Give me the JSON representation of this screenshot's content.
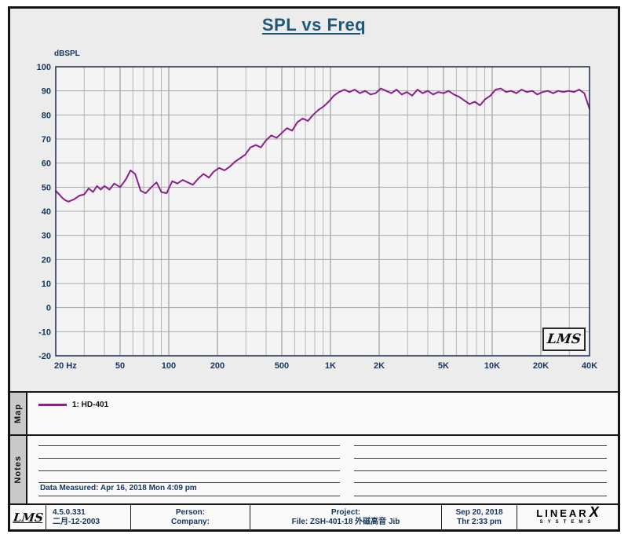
{
  "title": "SPL vs Freq",
  "chart": {
    "ylabel": "dBSPL",
    "watermark": "LMS",
    "x_ticks": [
      {
        "v": 20,
        "label": "20 Hz"
      },
      {
        "v": 50,
        "label": "50"
      },
      {
        "v": 100,
        "label": "100"
      },
      {
        "v": 200,
        "label": "200"
      },
      {
        "v": 500,
        "label": "500"
      },
      {
        "v": 1000,
        "label": "1K"
      },
      {
        "v": 2000,
        "label": "2K"
      },
      {
        "v": 5000,
        "label": "5K"
      },
      {
        "v": 10000,
        "label": "10K"
      },
      {
        "v": 20000,
        "label": "20K"
      },
      {
        "v": 40000,
        "label": "40K"
      }
    ],
    "y_ticks": [
      100,
      90,
      80,
      70,
      60,
      50,
      40,
      30,
      20,
      10,
      0,
      -10,
      -20
    ],
    "colors": {
      "plot_bg": "#f4f4f4",
      "grid_minor": "#b5b5b5",
      "grid_major": "#8c8c8c",
      "grid_h": "#a8a8a8",
      "border": "#1c2b4a",
      "axis_text": "#14365f",
      "curve": "#8c1f8c",
      "title": "#1e5878"
    }
  },
  "chart_data": {
    "type": "line",
    "x_scale": "log",
    "grid": true,
    "xlabel": "",
    "ylabel": "dBSPL",
    "xlim": [
      20,
      40000
    ],
    "ylim": [
      -20,
      100
    ],
    "series": [
      {
        "name": "1: HD-401",
        "color": "#8c1f8c",
        "x": [
          20,
          21,
          22,
          23,
          24,
          25,
          26,
          28,
          30,
          32,
          34,
          36,
          38,
          40,
          43,
          46,
          50,
          54,
          58,
          62,
          67,
          72,
          78,
          84,
          90,
          97,
          105,
          113,
          122,
          131,
          141,
          152,
          164,
          177,
          190,
          205,
          221,
          238,
          256,
          276,
          297,
          320,
          345,
          371,
          400,
          431,
          464,
          500,
          538,
          580,
          625,
          673,
          725,
          780,
          840,
          905,
          975,
          1050,
          1130,
          1220,
          1310,
          1410,
          1520,
          1640,
          1770,
          1900,
          2050,
          2210,
          2380,
          2560,
          2760,
          2970,
          3200,
          3450,
          3710,
          4000,
          4310,
          4640,
          5000,
          5380,
          5800,
          6250,
          6730,
          7250,
          7800,
          8400,
          9050,
          9750,
          10500,
          11300,
          12200,
          13100,
          14100,
          15200,
          16400,
          17700,
          19000,
          20500,
          22100,
          23800,
          25600,
          27600,
          29700,
          32000,
          34500,
          37100,
          40000
        ],
        "y": [
          48.5,
          47,
          45.5,
          44.5,
          44,
          44.5,
          45,
          46.5,
          47,
          49.5,
          48,
          50.5,
          49,
          50.5,
          49,
          51.5,
          50,
          53,
          57,
          55.5,
          48.5,
          47.5,
          50,
          52,
          48,
          47.5,
          52.5,
          51.5,
          53,
          52,
          51,
          53.5,
          55.5,
          54,
          56.5,
          58,
          57,
          58.5,
          60.5,
          62,
          63.5,
          66.5,
          67.5,
          66.5,
          69.5,
          71.5,
          70.5,
          72.5,
          74.5,
          73.5,
          77,
          78.5,
          77.5,
          80,
          82,
          83.5,
          85.5,
          88,
          89.5,
          90.5,
          89.5,
          90.5,
          89,
          90,
          88.5,
          89,
          91,
          90,
          89,
          90.5,
          88.5,
          89.5,
          88,
          90.5,
          89,
          90,
          88.5,
          89.5,
          89,
          90,
          88.5,
          87.5,
          86,
          84.5,
          85.5,
          84,
          86.5,
          88,
          90.5,
          91,
          89.5,
          90,
          89,
          90.5,
          89.5,
          90,
          88.5,
          89.5,
          90,
          89,
          90,
          89.5,
          90,
          89.5,
          90.5,
          89,
          82.5
        ]
      }
    ]
  },
  "map": {
    "label": "Map",
    "legend": "1: HD-401"
  },
  "notes": {
    "label": "Notes",
    "measured": "Data Measured: Apr 16, 2018  Mon  4:09 pm"
  },
  "footer": {
    "lms": "LMS",
    "version": "4.5.0.331",
    "version_date": "二月-12-2003",
    "person_label": "Person:",
    "company_label": "Company:",
    "project_label": "Project:",
    "file_label": "File: ZSH-401-18 外磁高音 Jib",
    "date": "Sep 20, 2018",
    "time": "Thr  2:33 pm",
    "brand_name": "LINEAR",
    "brand_x": "X",
    "brand_sub": "SYSTEMS"
  }
}
